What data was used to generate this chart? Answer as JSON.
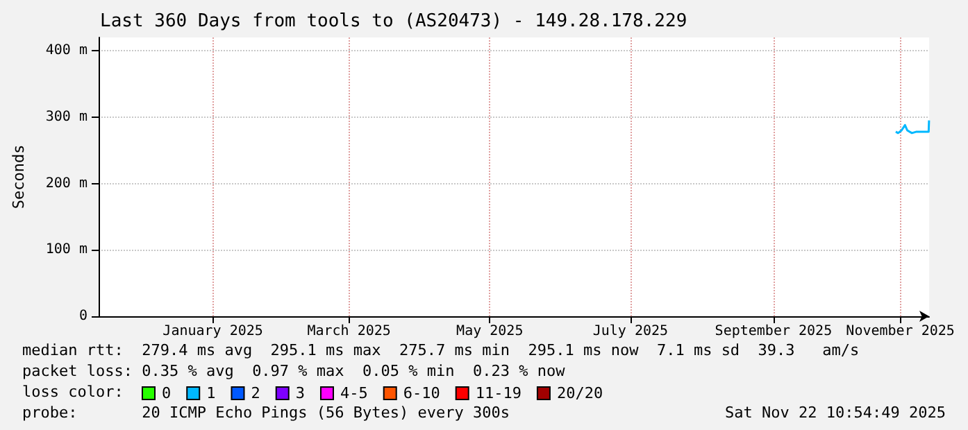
{
  "chart_data": {
    "type": "line",
    "title": "Last 360 Days from tools to (AS20473) - 149.28.178.229",
    "ylabel": "Seconds",
    "x": [
      "2025-11-08",
      "2025-11-09",
      "2025-11-10T12:00",
      "2025-11-12",
      "2025-11-13",
      "2025-11-15",
      "2025-11-17",
      "2025-11-19T12:00",
      "2025-11-21",
      "2025-11-22T06:00",
      "2025-11-22T10:00"
    ],
    "series": [
      {
        "name": "0",
        "color": "#26ff00",
        "values": [
          null,
          null,
          null,
          null,
          null,
          null,
          null,
          null,
          null,
          null,
          null
        ]
      },
      {
        "name": "1",
        "color": "#00b8ff",
        "values": [
          278,
          276,
          280,
          288,
          280,
          276,
          278,
          278,
          278,
          278,
          295
        ]
      },
      {
        "name": "2",
        "color": "#0059ff",
        "values": [
          null,
          null,
          null,
          null,
          null,
          null,
          null,
          null,
          null,
          null,
          null
        ]
      },
      {
        "name": "3",
        "color": "#7e00ff",
        "values": [
          null,
          null,
          null,
          null,
          null,
          null,
          null,
          null,
          null,
          null,
          null
        ]
      },
      {
        "name": "4-5",
        "color": "#ff00ff",
        "values": [
          null,
          null,
          null,
          null,
          null,
          null,
          null,
          null,
          null,
          null,
          null
        ]
      },
      {
        "name": "6-10",
        "color": "#ff5500",
        "values": [
          null,
          null,
          null,
          null,
          null,
          null,
          null,
          null,
          null,
          null,
          null
        ]
      },
      {
        "name": "11-19",
        "color": "#ff0000",
        "values": [
          null,
          null,
          null,
          null,
          null,
          null,
          null,
          null,
          null,
          null,
          null
        ]
      },
      {
        "name": "20/20",
        "color": "#a10000",
        "values": [
          null,
          null,
          null,
          null,
          null,
          null,
          null,
          null,
          null,
          null,
          null
        ]
      }
    ],
    "legend_title": "loss color:",
    "legend": "bottom",
    "xlim": [
      "2024-11-27T10:54",
      "2025-11-22T10:54"
    ],
    "xticks": [
      {
        "value": "2025-01-16",
        "label": "January 2025"
      },
      {
        "value": "2025-03-16",
        "label": "March 2025"
      },
      {
        "value": "2025-05-16",
        "label": "May 2025"
      },
      {
        "value": "2025-07-16",
        "label": "July 2025"
      },
      {
        "value": "2025-09-16",
        "label": "September 2025"
      },
      {
        "value": "2025-11-10",
        "label": "November 2025"
      }
    ],
    "ylim": [
      0,
      420
    ],
    "yticks": [
      0,
      {
        "value": 100,
        "label": "100 m"
      },
      {
        "value": 200,
        "label": "200 m"
      },
      {
        "value": 300,
        "label": "300 m"
      },
      {
        "value": 400,
        "label": "400 m"
      }
    ],
    "grid": true,
    "marker": "none",
    "line_style": "solid",
    "annotations": [
      "median rtt:  279.4 ms avg  295.1 ms max  275.7 ms min  295.1 ms now  7.1 ms sd  39.3   am/s",
      "packet loss: 0.35 % avg  0.97 % max  0.05 % min  0.23 % now",
      "probe:       20 ICMP Echo Pings (56 Bytes) every 300s",
      "Sat Nov 22 10:54:49 2025"
    ]
  }
}
